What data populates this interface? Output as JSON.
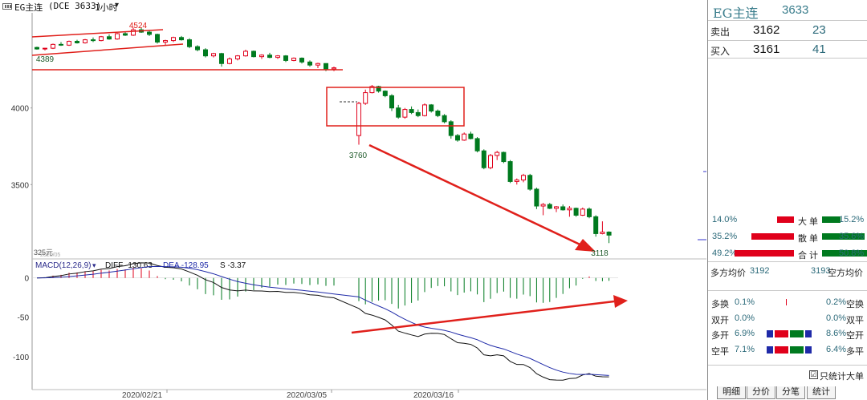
{
  "toolbar": {
    "symbol": "EG主连",
    "code_text": "(DCE 3633)",
    "period": "1小时",
    "chevron_icon": "chevron-down-icon"
  },
  "colors": {
    "up": "#e0001b",
    "down": "#007a1f",
    "diff_line": "#111111",
    "dea_line": "#1f2aa8",
    "annotation": "#e0201b",
    "label_blue": "#2c6a7a"
  },
  "price_axis": {
    "labels": [
      "4000",
      "3500"
    ],
    "corner": "325元",
    "corner2": "2020/05"
  },
  "annotations": {
    "high": "4524",
    "low_left": "4389",
    "low_mid": "3760",
    "low_right": "3118"
  },
  "macd": {
    "header_name": "MACD(12,26,9)",
    "diff_label": "DIFF -130.63",
    "dea_label": "DEA -128.95",
    "s_label": "S -3.37",
    "axis": [
      "0",
      "-50",
      "-100"
    ]
  },
  "dates": [
    "2020/02/21",
    "2020/03/05",
    "2020/03/16"
  ],
  "chart_data": {
    "type": "candlestick",
    "ylim": [
      3020,
      4600
    ],
    "candles": [
      [
        4395,
        4400,
        4380,
        4385
      ],
      [
        4385,
        4392,
        4375,
        4390
      ],
      [
        4390,
        4420,
        4385,
        4415
      ],
      [
        4415,
        4430,
        4405,
        4410
      ],
      [
        4410,
        4440,
        4405,
        4435
      ],
      [
        4435,
        4445,
        4420,
        4425
      ],
      [
        4425,
        4450,
        4420,
        4445
      ],
      [
        4445,
        4460,
        4430,
        4440
      ],
      [
        4440,
        4470,
        4435,
        4465
      ],
      [
        4465,
        4480,
        4445,
        4450
      ],
      [
        4450,
        4490,
        4445,
        4485
      ],
      [
        4485,
        4500,
        4470,
        4475
      ],
      [
        4475,
        4524,
        4470,
        4510
      ],
      [
        4510,
        4524,
        4490,
        4495
      ],
      [
        4495,
        4505,
        4470,
        4480
      ],
      [
        4480,
        4485,
        4420,
        4430
      ],
      [
        4430,
        4445,
        4410,
        4440
      ],
      [
        4440,
        4465,
        4430,
        4460
      ],
      [
        4460,
        4470,
        4440,
        4445
      ],
      [
        4445,
        4455,
        4390,
        4400
      ],
      [
        4400,
        4410,
        4370,
        4380
      ],
      [
        4380,
        4390,
        4330,
        4340
      ],
      [
        4340,
        4360,
        4330,
        4355
      ],
      [
        4355,
        4360,
        4270,
        4290
      ],
      [
        4290,
        4330,
        4285,
        4320
      ],
      [
        4320,
        4345,
        4310,
        4340
      ],
      [
        4340,
        4380,
        4335,
        4370
      ],
      [
        4370,
        4375,
        4330,
        4335
      ],
      [
        4335,
        4350,
        4320,
        4345
      ],
      [
        4345,
        4360,
        4325,
        4330
      ],
      [
        4330,
        4345,
        4320,
        4340
      ],
      [
        4340,
        4345,
        4300,
        4310
      ],
      [
        4310,
        4330,
        4305,
        4325
      ],
      [
        4325,
        4330,
        4290,
        4300
      ],
      [
        4300,
        4310,
        4270,
        4280
      ],
      [
        4280,
        4295,
        4260,
        4290
      ],
      [
        4290,
        4292,
        4240,
        4255
      ],
      [
        4255,
        4270,
        4240,
        4262
      ],
      [
        3820,
        4040,
        3760,
        4030
      ],
      [
        4030,
        4120,
        4020,
        4100
      ],
      [
        4100,
        4150,
        4095,
        4140
      ],
      [
        4140,
        4145,
        4100,
        4110
      ],
      [
        4110,
        4115,
        4070,
        4080
      ],
      [
        4080,
        4090,
        3980,
        4000
      ],
      [
        4000,
        4020,
        3930,
        3940
      ],
      [
        3940,
        4000,
        3930,
        3990
      ],
      [
        3990,
        4010,
        3960,
        3970
      ],
      [
        3970,
        3990,
        3940,
        3950
      ],
      [
        3950,
        4030,
        3945,
        4020
      ],
      [
        4020,
        4025,
        3970,
        3980
      ],
      [
        3980,
        3990,
        3940,
        3950
      ],
      [
        3950,
        3960,
        3900,
        3910
      ],
      [
        3910,
        3920,
        3800,
        3820
      ],
      [
        3820,
        3830,
        3780,
        3790
      ],
      [
        3790,
        3840,
        3785,
        3830
      ],
      [
        3830,
        3845,
        3795,
        3800
      ],
      [
        3800,
        3810,
        3710,
        3720
      ],
      [
        3720,
        3730,
        3600,
        3610
      ],
      [
        3610,
        3700,
        3600,
        3690
      ],
      [
        3690,
        3720,
        3660,
        3710
      ],
      [
        3710,
        3715,
        3640,
        3650
      ],
      [
        3650,
        3660,
        3510,
        3520
      ],
      [
        3520,
        3540,
        3500,
        3530
      ],
      [
        3530,
        3570,
        3515,
        3560
      ],
      [
        3560,
        3570,
        3460,
        3470
      ],
      [
        3470,
        3480,
        3340,
        3360
      ],
      [
        3360,
        3380,
        3300,
        3370
      ],
      [
        3370,
        3380,
        3340,
        3345
      ],
      [
        3345,
        3360,
        3320,
        3355
      ],
      [
        3355,
        3370,
        3330,
        3335
      ],
      [
        3335,
        3360,
        3290,
        3345
      ],
      [
        3345,
        3350,
        3290,
        3300
      ],
      [
        3300,
        3350,
        3295,
        3340
      ],
      [
        3340,
        3350,
        3280,
        3290
      ],
      [
        3290,
        3300,
        3160,
        3180
      ],
      [
        3180,
        3260,
        3175,
        3190
      ],
      [
        3190,
        3195,
        3118,
        3170
      ]
    ]
  },
  "panel": {
    "title": "EG主连",
    "code": "3633",
    "sell": {
      "label": "卖出",
      "price": "3162",
      "vol": "23"
    },
    "buy": {
      "label": "买入",
      "price": "3161",
      "vol": "41"
    },
    "flows": [
      {
        "left_pct": "14.0%",
        "label": "大 单",
        "right_pct": "15.2%",
        "red": 0.14,
        "green": 0.152
      },
      {
        "left_pct": "35.2%",
        "label": "散 单",
        "right_pct": "35.6%",
        "red": 0.352,
        "green": 0.356
      },
      {
        "left_pct": "49.2%",
        "label": "合 计",
        "right_pct": "50.8%",
        "red": 0.492,
        "green": 0.508
      }
    ],
    "avg_long_label": "多方均价",
    "avg_long": "3192",
    "avg_short": "3193",
    "avg_short_label": "空方均价",
    "trade_rows": [
      {
        "l_label": "多换",
        "l_val": "0.1%",
        "r_val": "0.2%",
        "r_label": "空换"
      },
      {
        "l_label": "双开",
        "l_val": "0.0%",
        "r_val": "0.0%",
        "r_label": "双平"
      },
      {
        "l_label": "多开",
        "l_val": "6.9%",
        "r_val": "8.6%",
        "r_label": "空开"
      },
      {
        "l_label": "空平",
        "l_val": "7.1%",
        "r_val": "6.4%",
        "r_label": "多平"
      }
    ],
    "checkbox_label": "只统计大单",
    "tabs": [
      "明细",
      "分价",
      "分笔",
      "统计"
    ]
  }
}
